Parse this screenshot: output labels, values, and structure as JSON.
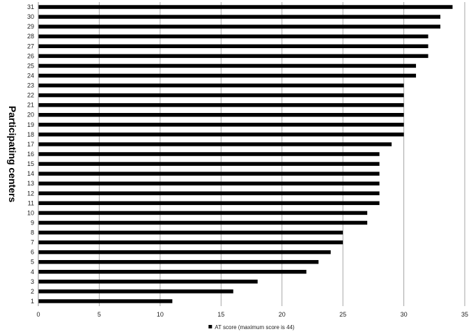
{
  "chart_data": {
    "type": "bar",
    "orientation": "horizontal",
    "ylabel": "Participating centers",
    "xlabel": "",
    "xlim": [
      0,
      35
    ],
    "xticks": [
      0,
      5,
      10,
      15,
      20,
      25,
      30,
      35
    ],
    "grid": "vertical",
    "legend_position": "bottom",
    "bar_color": "#000000",
    "categories": [
      "1",
      "2",
      "3",
      "4",
      "5",
      "6",
      "7",
      "8",
      "9",
      "10",
      "11",
      "12",
      "13",
      "14",
      "15",
      "16",
      "17",
      "18",
      "19",
      "20",
      "21",
      "22",
      "23",
      "24",
      "25",
      "26",
      "27",
      "28",
      "29",
      "30",
      "31"
    ],
    "series": [
      {
        "name": "AT score (maximum score is 44)",
        "values": [
          11,
          16,
          18,
          22,
          23,
          24,
          25,
          25,
          27,
          27,
          28,
          28,
          28,
          28,
          28,
          28,
          29,
          30,
          30,
          30,
          30,
          30,
          30,
          31,
          31,
          32,
          32,
          32,
          33,
          33,
          34
        ]
      }
    ]
  }
}
